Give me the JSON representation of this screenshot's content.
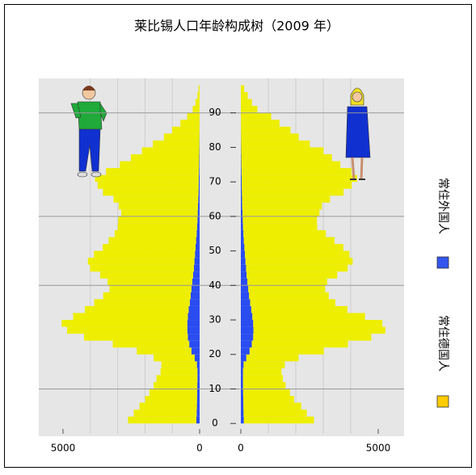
{
  "chart_data": {
    "type": "population-pyramid",
    "title": "莱比锡人口年龄构成树（2009 年）",
    "x": [
      0,
      2,
      4,
      6,
      8,
      10,
      12,
      14,
      16,
      18,
      20,
      22,
      24,
      26,
      28,
      30,
      32,
      34,
      36,
      38,
      40,
      42,
      44,
      46,
      48,
      50,
      52,
      54,
      56,
      58,
      60,
      62,
      64,
      66,
      68,
      70,
      72,
      74,
      76,
      78,
      80,
      82,
      84,
      86,
      88,
      90,
      92,
      94,
      96
    ],
    "ylim": [
      -3,
      100
    ],
    "yticks": [
      0,
      10,
      20,
      30,
      40,
      50,
      60,
      70,
      80,
      90
    ],
    "left": {
      "xlim": [
        5000,
        0
      ],
      "xticks": [
        5000,
        0
      ]
    },
    "right": {
      "xlim": [
        0,
        5000
      ],
      "xticks": [
        0,
        5000
      ]
    },
    "xgrid": [
      1000,
      2000,
      3000,
      4000
    ],
    "reference_lines": [
      10,
      40,
      60,
      90
    ],
    "series": [
      {
        "name": "常住外国人",
        "color": "#2a4cf0",
        "legend_color": "#3355ee",
        "values": {
          "male": [
            120,
            110,
            100,
            95,
            90,
            85,
            80,
            80,
            100,
            180,
            300,
            380,
            430,
            450,
            450,
            430,
            400,
            360,
            330,
            300,
            270,
            240,
            210,
            190,
            170,
            150,
            130,
            110,
            95,
            80,
            70,
            60,
            50,
            40,
            35,
            30,
            25,
            20,
            15,
            12,
            10,
            8,
            6,
            5,
            4,
            3,
            2,
            1,
            1
          ],
          "female": [
            110,
            100,
            95,
            90,
            85,
            80,
            80,
            80,
            100,
            200,
            320,
            400,
            450,
            460,
            450,
            420,
            380,
            340,
            300,
            270,
            240,
            210,
            190,
            170,
            150,
            130,
            110,
            95,
            80,
            70,
            60,
            50,
            45,
            40,
            35,
            30,
            25,
            20,
            15,
            12,
            10,
            8,
            6,
            5,
            4,
            3,
            2,
            1,
            1
          ]
        }
      },
      {
        "name": "常住德国人",
        "color": "#eeee00",
        "legend_color": "#ffcc00",
        "values": {
          "male": [
            2500,
            2300,
            2100,
            1900,
            1750,
            1600,
            1500,
            1350,
            1300,
            1500,
            2000,
            2800,
            3800,
            4400,
            4600,
            4200,
            3800,
            3500,
            3200,
            3000,
            3100,
            3400,
            3800,
            3900,
            3700,
            3400,
            3200,
            3000,
            2900,
            2900,
            2800,
            2900,
            3100,
            3500,
            3700,
            3800,
            3400,
            2900,
            2500,
            2100,
            1700,
            1300,
            1000,
            700,
            450,
            250,
            150,
            80,
            40
          ],
          "female": [
            2550,
            2300,
            2100,
            1850,
            1700,
            1550,
            1450,
            1400,
            1500,
            1900,
            2700,
            3500,
            4300,
            4800,
            4700,
            4100,
            3500,
            3100,
            2900,
            2800,
            2900,
            3300,
            3700,
            3900,
            3800,
            3600,
            3300,
            3000,
            2700,
            2700,
            2800,
            2900,
            3200,
            3700,
            4000,
            4200,
            4000,
            3600,
            3300,
            3000,
            2500,
            2100,
            1800,
            1400,
            1100,
            600,
            400,
            250,
            120
          ]
        }
      }
    ]
  }
}
